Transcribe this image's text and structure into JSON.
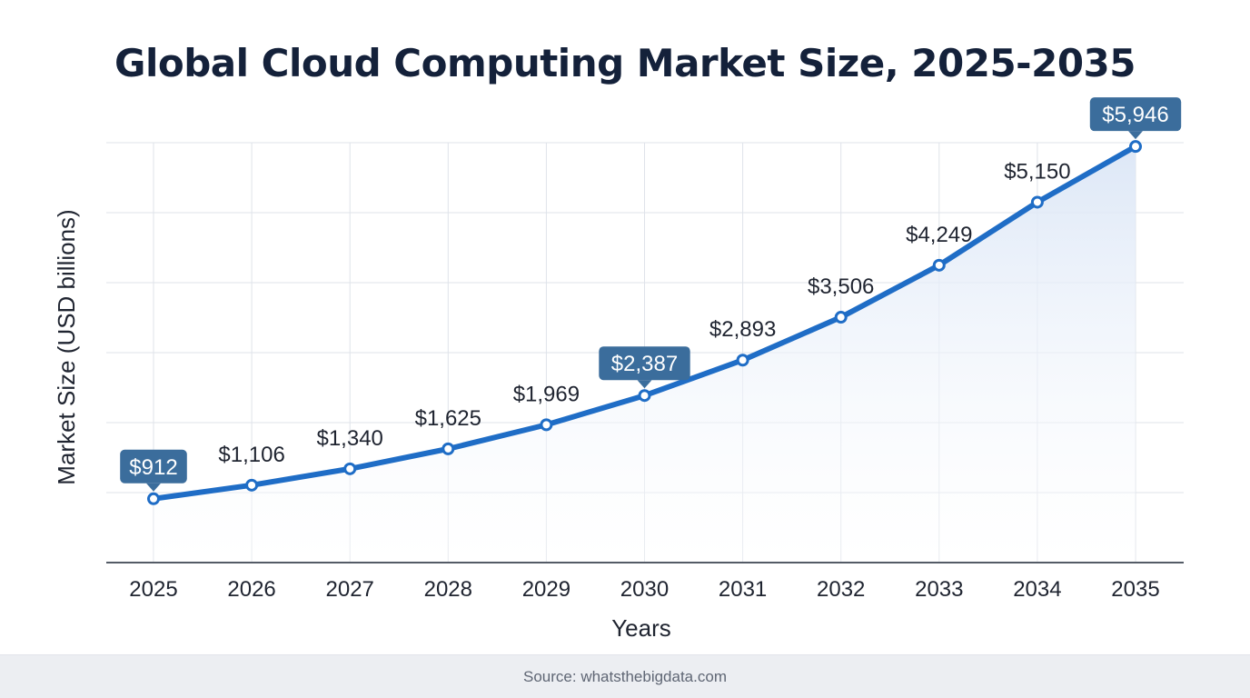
{
  "footer": {
    "source": "Source: whatsthebigdata.com"
  },
  "colors": {
    "line": "#1f6dc6",
    "point_fill": "#ffffff",
    "callout": "#3b6d9c",
    "grid": "#dfe3ea",
    "axis": "#545b66",
    "area_top": "#dbe6f6"
  },
  "chart_data": {
    "type": "line",
    "title": "Global Cloud Computing Market Size, 2025-2035",
    "xlabel": "Years",
    "ylabel": "Market Size (USD billions)",
    "categories": [
      "2025",
      "2026",
      "2027",
      "2028",
      "2029",
      "2030",
      "2031",
      "2032",
      "2033",
      "2034",
      "2035"
    ],
    "series": [
      {
        "name": "Market Size",
        "values": [
          912,
          1106,
          1340,
          1625,
          1969,
          2387,
          2893,
          3506,
          4249,
          5150,
          5946
        ]
      }
    ],
    "data_labels": [
      "$912",
      "$1,106",
      "$1,340",
      "$1,625",
      "$1,969",
      "$2,387",
      "$2,893",
      "$3,506",
      "$4,249",
      "$5,150",
      "$5,946"
    ],
    "highlighted_labels": [
      "2025",
      "2030",
      "2035"
    ],
    "ylim": [
      0,
      6000
    ],
    "grid": true,
    "y_tick_labels_shown": false,
    "area_fill": true
  }
}
